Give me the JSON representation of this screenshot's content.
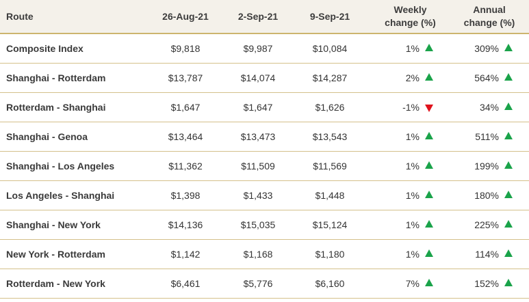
{
  "header": {
    "route": "Route",
    "date1": "26-Aug-21",
    "date2": "2-Sep-21",
    "date3": "9-Sep-21",
    "weekly_line1": "Weekly",
    "weekly_line2": "change (%)",
    "annual_line1": "Annual",
    "annual_line2": "change (%)"
  },
  "colors": {
    "up": "#1aa34a",
    "down": "#e0121c",
    "rule": "#d4c08a"
  },
  "rows": [
    {
      "route": "Composite Index",
      "d1": "$9,818",
      "d2": "$9,987",
      "d3": "$10,084",
      "weekly": "1%",
      "weekly_dir": "up",
      "annual": "309%",
      "annual_dir": "up"
    },
    {
      "route": "Shanghai - Rotterdam",
      "d1": "$13,787",
      "d2": "$14,074",
      "d3": "$14,287",
      "weekly": "2%",
      "weekly_dir": "up",
      "annual": "564%",
      "annual_dir": "up"
    },
    {
      "route": "Rotterdam - Shanghai",
      "d1": "$1,647",
      "d2": "$1,647",
      "d3": "$1,626",
      "weekly": "-1%",
      "weekly_dir": "down",
      "annual": "34%",
      "annual_dir": "up"
    },
    {
      "route": "Shanghai - Genoa",
      "d1": "$13,464",
      "d2": "$13,473",
      "d3": "$13,543",
      "weekly": "1%",
      "weekly_dir": "up",
      "annual": "511%",
      "annual_dir": "up"
    },
    {
      "route": "Shanghai - Los Angeles",
      "d1": "$11,362",
      "d2": "$11,509",
      "d3": "$11,569",
      "weekly": "1%",
      "weekly_dir": "up",
      "annual": "199%",
      "annual_dir": "up"
    },
    {
      "route": "Los Angeles - Shanghai",
      "d1": "$1,398",
      "d2": "$1,433",
      "d3": "$1,448",
      "weekly": "1%",
      "weekly_dir": "up",
      "annual": "180%",
      "annual_dir": "up"
    },
    {
      "route": "Shanghai - New York",
      "d1": "$14,136",
      "d2": "$15,035",
      "d3": "$15,124",
      "weekly": "1%",
      "weekly_dir": "up",
      "annual": "225%",
      "annual_dir": "up"
    },
    {
      "route": "New York - Rotterdam",
      "d1": "$1,142",
      "d2": "$1,168",
      "d3": "$1,180",
      "weekly": "1%",
      "weekly_dir": "up",
      "annual": "114%",
      "annual_dir": "up"
    },
    {
      "route": "Rotterdam - New York",
      "d1": "$6,461",
      "d2": "$5,776",
      "d3": "$6,160",
      "weekly": "7%",
      "weekly_dir": "up",
      "annual": "152%",
      "annual_dir": "up"
    }
  ]
}
